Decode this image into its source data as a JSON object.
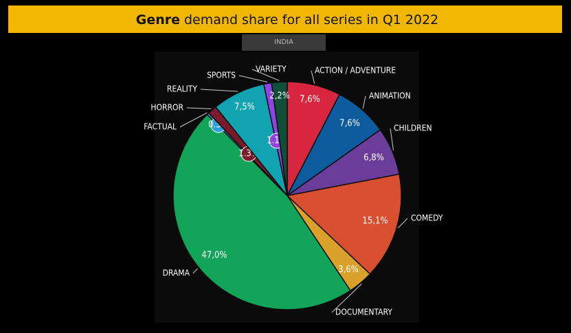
{
  "chart_data": {
    "type": "pie",
    "title_bold": "Genre",
    "title": "demand share for all series in Q1 2022",
    "subtitle": "INDIA",
    "categories": [
      "ACTION / ADVENTURE",
      "ANIMATION",
      "CHILDREN",
      "COMEDY",
      "DOCUMENTARY",
      "DRAMA",
      "FACTUAL",
      "HORROR",
      "REALITY",
      "SPORTS",
      "VARIETY"
    ],
    "values": [
      7.6,
      7.6,
      6.8,
      15.1,
      3.6,
      47.0,
      0.3,
      1.3,
      7.5,
      1.1,
      2.2
    ],
    "value_labels": [
      "7,6%",
      "7,6%",
      "6,8%",
      "15,1%",
      "3,6%",
      "47,0%",
      "0.3%",
      "1.3%",
      "7,5%",
      "1.1%",
      "2,2%"
    ],
    "colors": [
      "#d7263d",
      "#0e5c9e",
      "#6a3d9a",
      "#d95030",
      "#d9a12a",
      "#12a55a",
      "#2c9ed8",
      "#7a1a2a",
      "#12a3b0",
      "#8e44e0",
      "#0f4f3a"
    ]
  }
}
